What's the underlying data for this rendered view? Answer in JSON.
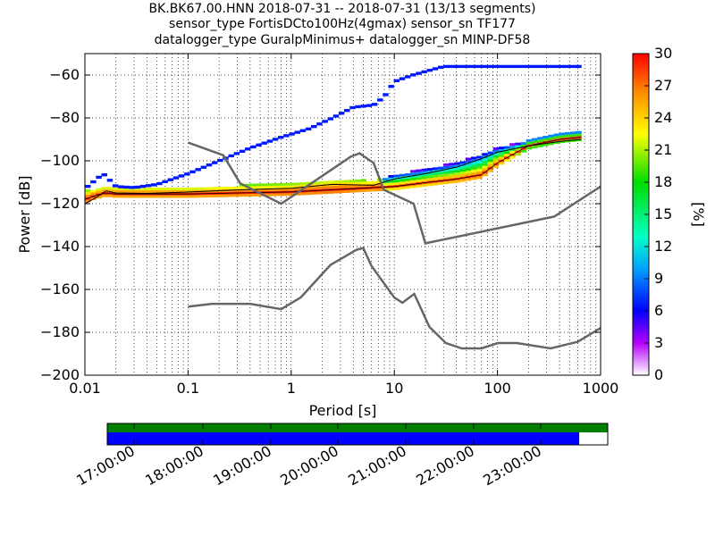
{
  "chart_data": {
    "type": "heatmap",
    "title_lines": [
      "BK.BK67.00.HNN   2018-07-31 -- 2018-07-31  (13/13 segments)",
      "sensor_type FortisDCto100Hz(4gmax) sensor_sn TF177",
      "datalogger_type GuralpMinimus+ datalogger_sn MINP-DF58"
    ],
    "xlabel": "Period [s]",
    "ylabel": "Power [dB]",
    "x_scale": "log",
    "xlim": [
      0.01,
      1000
    ],
    "ylim": [
      -200,
      -50
    ],
    "x_ticks": [
      "0.01",
      "0.1",
      "1",
      "10",
      "100",
      "1000"
    ],
    "y_ticks": [
      "−200",
      "−180",
      "−160",
      "−140",
      "−120",
      "−100",
      "−80",
      "−60"
    ],
    "grid": true,
    "colorbar": {
      "label": "[%]",
      "range": [
        0,
        30
      ],
      "ticks": [
        "0",
        "3",
        "6",
        "9",
        "12",
        "15",
        "18",
        "21",
        "24",
        "27",
        "30"
      ]
    },
    "reference_curves": [
      {
        "points": [
          [
            0.1,
            -168
          ],
          [
            0.17,
            -166.7
          ],
          [
            0.4,
            -166.7
          ],
          [
            0.8,
            -169.2
          ],
          [
            1.24,
            -163.7
          ],
          [
            2.4,
            -148.6
          ],
          [
            4.3,
            -141.5
          ],
          [
            5,
            -140.7
          ],
          [
            6,
            -149
          ],
          [
            10,
            -163.8
          ],
          [
            12,
            -166.2
          ],
          [
            15.6,
            -162.1
          ],
          [
            21.9,
            -177.5
          ],
          [
            31.6,
            -185
          ],
          [
            45,
            -187.5
          ],
          [
            70,
            -187.5
          ],
          [
            101,
            -185
          ],
          [
            154,
            -185
          ],
          [
            328,
            -187.5
          ],
          [
            600,
            -184.4
          ],
          [
            1000,
            -178
          ]
        ]
      },
      {
        "points": [
          [
            0.1,
            -91.5
          ],
          [
            0.22,
            -97.4
          ],
          [
            0.32,
            -110.5
          ],
          [
            0.8,
            -120
          ],
          [
            3.8,
            -98
          ],
          [
            4.6,
            -96.5
          ],
          [
            6.3,
            -101
          ],
          [
            7.9,
            -113.5
          ],
          [
            15.4,
            -120
          ],
          [
            20,
            -138.5
          ],
          [
            354.8,
            -126
          ],
          [
            1000,
            -112
          ]
        ]
      }
    ],
    "mean_curve": {
      "points": [
        [
          0.01,
          -120
        ],
        [
          0.013,
          -117
        ],
        [
          0.016,
          -114
        ],
        [
          0.02,
          -115
        ],
        [
          0.04,
          -115.2
        ],
        [
          0.1,
          -114.6
        ],
        [
          0.3,
          -113.6
        ],
        [
          1,
          -112.8
        ],
        [
          2.5,
          -111
        ],
        [
          4,
          -111.2
        ],
        [
          6.3,
          -111.4
        ],
        [
          10,
          -108.5
        ],
        [
          20,
          -106
        ],
        [
          40,
          -103
        ],
        [
          70,
          -99
        ],
        [
          100,
          -96
        ],
        [
          200,
          -93
        ],
        [
          400,
          -91
        ],
        [
          650,
          -90
        ]
      ]
    },
    "mode_curve": {
      "points": [
        [
          0.01,
          -118
        ],
        [
          0.013,
          -116
        ],
        [
          0.016,
          -115
        ],
        [
          0.02,
          -115.5
        ],
        [
          0.1,
          -115.5
        ],
        [
          0.3,
          -115
        ],
        [
          1,
          -114.5
        ],
        [
          2.5,
          -113.5
        ],
        [
          4,
          -113
        ],
        [
          6.3,
          -112.5
        ],
        [
          10,
          -112
        ],
        [
          20,
          -110.2
        ],
        [
          40,
          -108.5
        ],
        [
          70,
          -106.5
        ],
        [
          100,
          -101
        ],
        [
          200,
          -93
        ],
        [
          400,
          -90
        ],
        [
          650,
          -89
        ]
      ]
    },
    "timeline": {
      "start_label": "17:00:00",
      "tick_labels": [
        "17:00:00",
        "18:00:00",
        "19:00:00",
        "20:00:00",
        "21:00:00",
        "22:00:00",
        "23:00:00"
      ],
      "data_coverage": [
        0,
        1
      ],
      "gap_free_coverage": [
        0,
        0.943
      ]
    }
  }
}
